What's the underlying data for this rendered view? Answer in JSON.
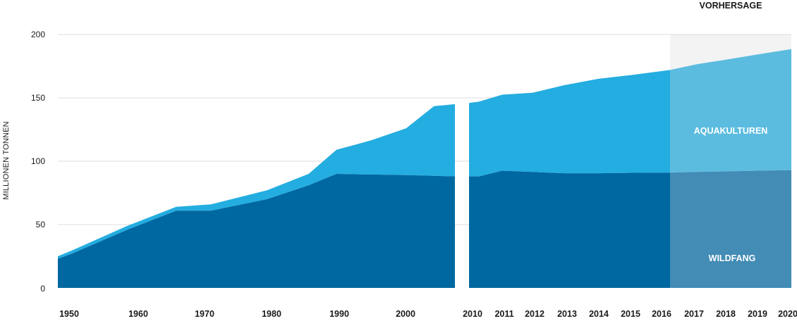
{
  "chart_data": {
    "type": "area",
    "ylabel": "MILLIONEN TONNEN",
    "y_ticks": [
      0,
      50,
      100,
      150,
      200
    ],
    "ylim": [
      0,
      200
    ],
    "grid": true,
    "forecast_label": "VORHERSAGE",
    "forecast_years": [
      "2017",
      "2018",
      "2019",
      "2020"
    ],
    "colors": {
      "wildfang": "#0068a1",
      "aquakulturen": "#24ade0",
      "forecast_wildfang": "#428cb5",
      "forecast_aquakulturen": "#5cbcdf",
      "forecast_bg": "#f3f3f3",
      "grid": "#dddddd"
    },
    "segments": [
      {
        "x_ticks": [
          "1950",
          "1960",
          "1970",
          "1980",
          "1990",
          "2000"
        ],
        "x": [
          1950,
          1952,
          1960,
          1967,
          1972,
          1980,
          1986,
          1990,
          1995,
          2000,
          2004,
          2007
        ],
        "series": [
          {
            "name": "WILDFANG",
            "values": [
              23,
              27,
              46,
              61,
              61,
              70,
              81,
              90,
              89.5,
              89,
              88.5,
              88
            ]
          },
          {
            "name": "AQUAKULTUREN",
            "values": [
              2,
              2.5,
              3,
              3,
              5,
              7,
              9,
              19,
              27,
              37,
              55,
              57
            ]
          }
        ]
      },
      {
        "x_ticks": [
          "2010",
          "2011",
          "2012",
          "2013",
          "2014",
          "2015",
          "2016",
          "2017",
          "2018",
          "2019",
          "2020"
        ],
        "x": [
          2010,
          2010.3,
          2011,
          2012,
          2013,
          2014,
          2015,
          2016,
          2017,
          2018,
          2019,
          2020
        ],
        "series": [
          {
            "name": "WILDFANG",
            "values": [
              88,
              88,
              92.5,
              91.5,
              90.5,
              90.5,
              90.8,
              91,
              91.5,
              92,
              92.5,
              93
            ]
          },
          {
            "name": "AQUAKULTUREN",
            "values": [
              58,
              59,
              60,
              62.5,
              69.5,
              74.5,
              77.2,
              81,
              85,
              88.5,
              92,
              95.5
            ]
          }
        ]
      }
    ]
  }
}
